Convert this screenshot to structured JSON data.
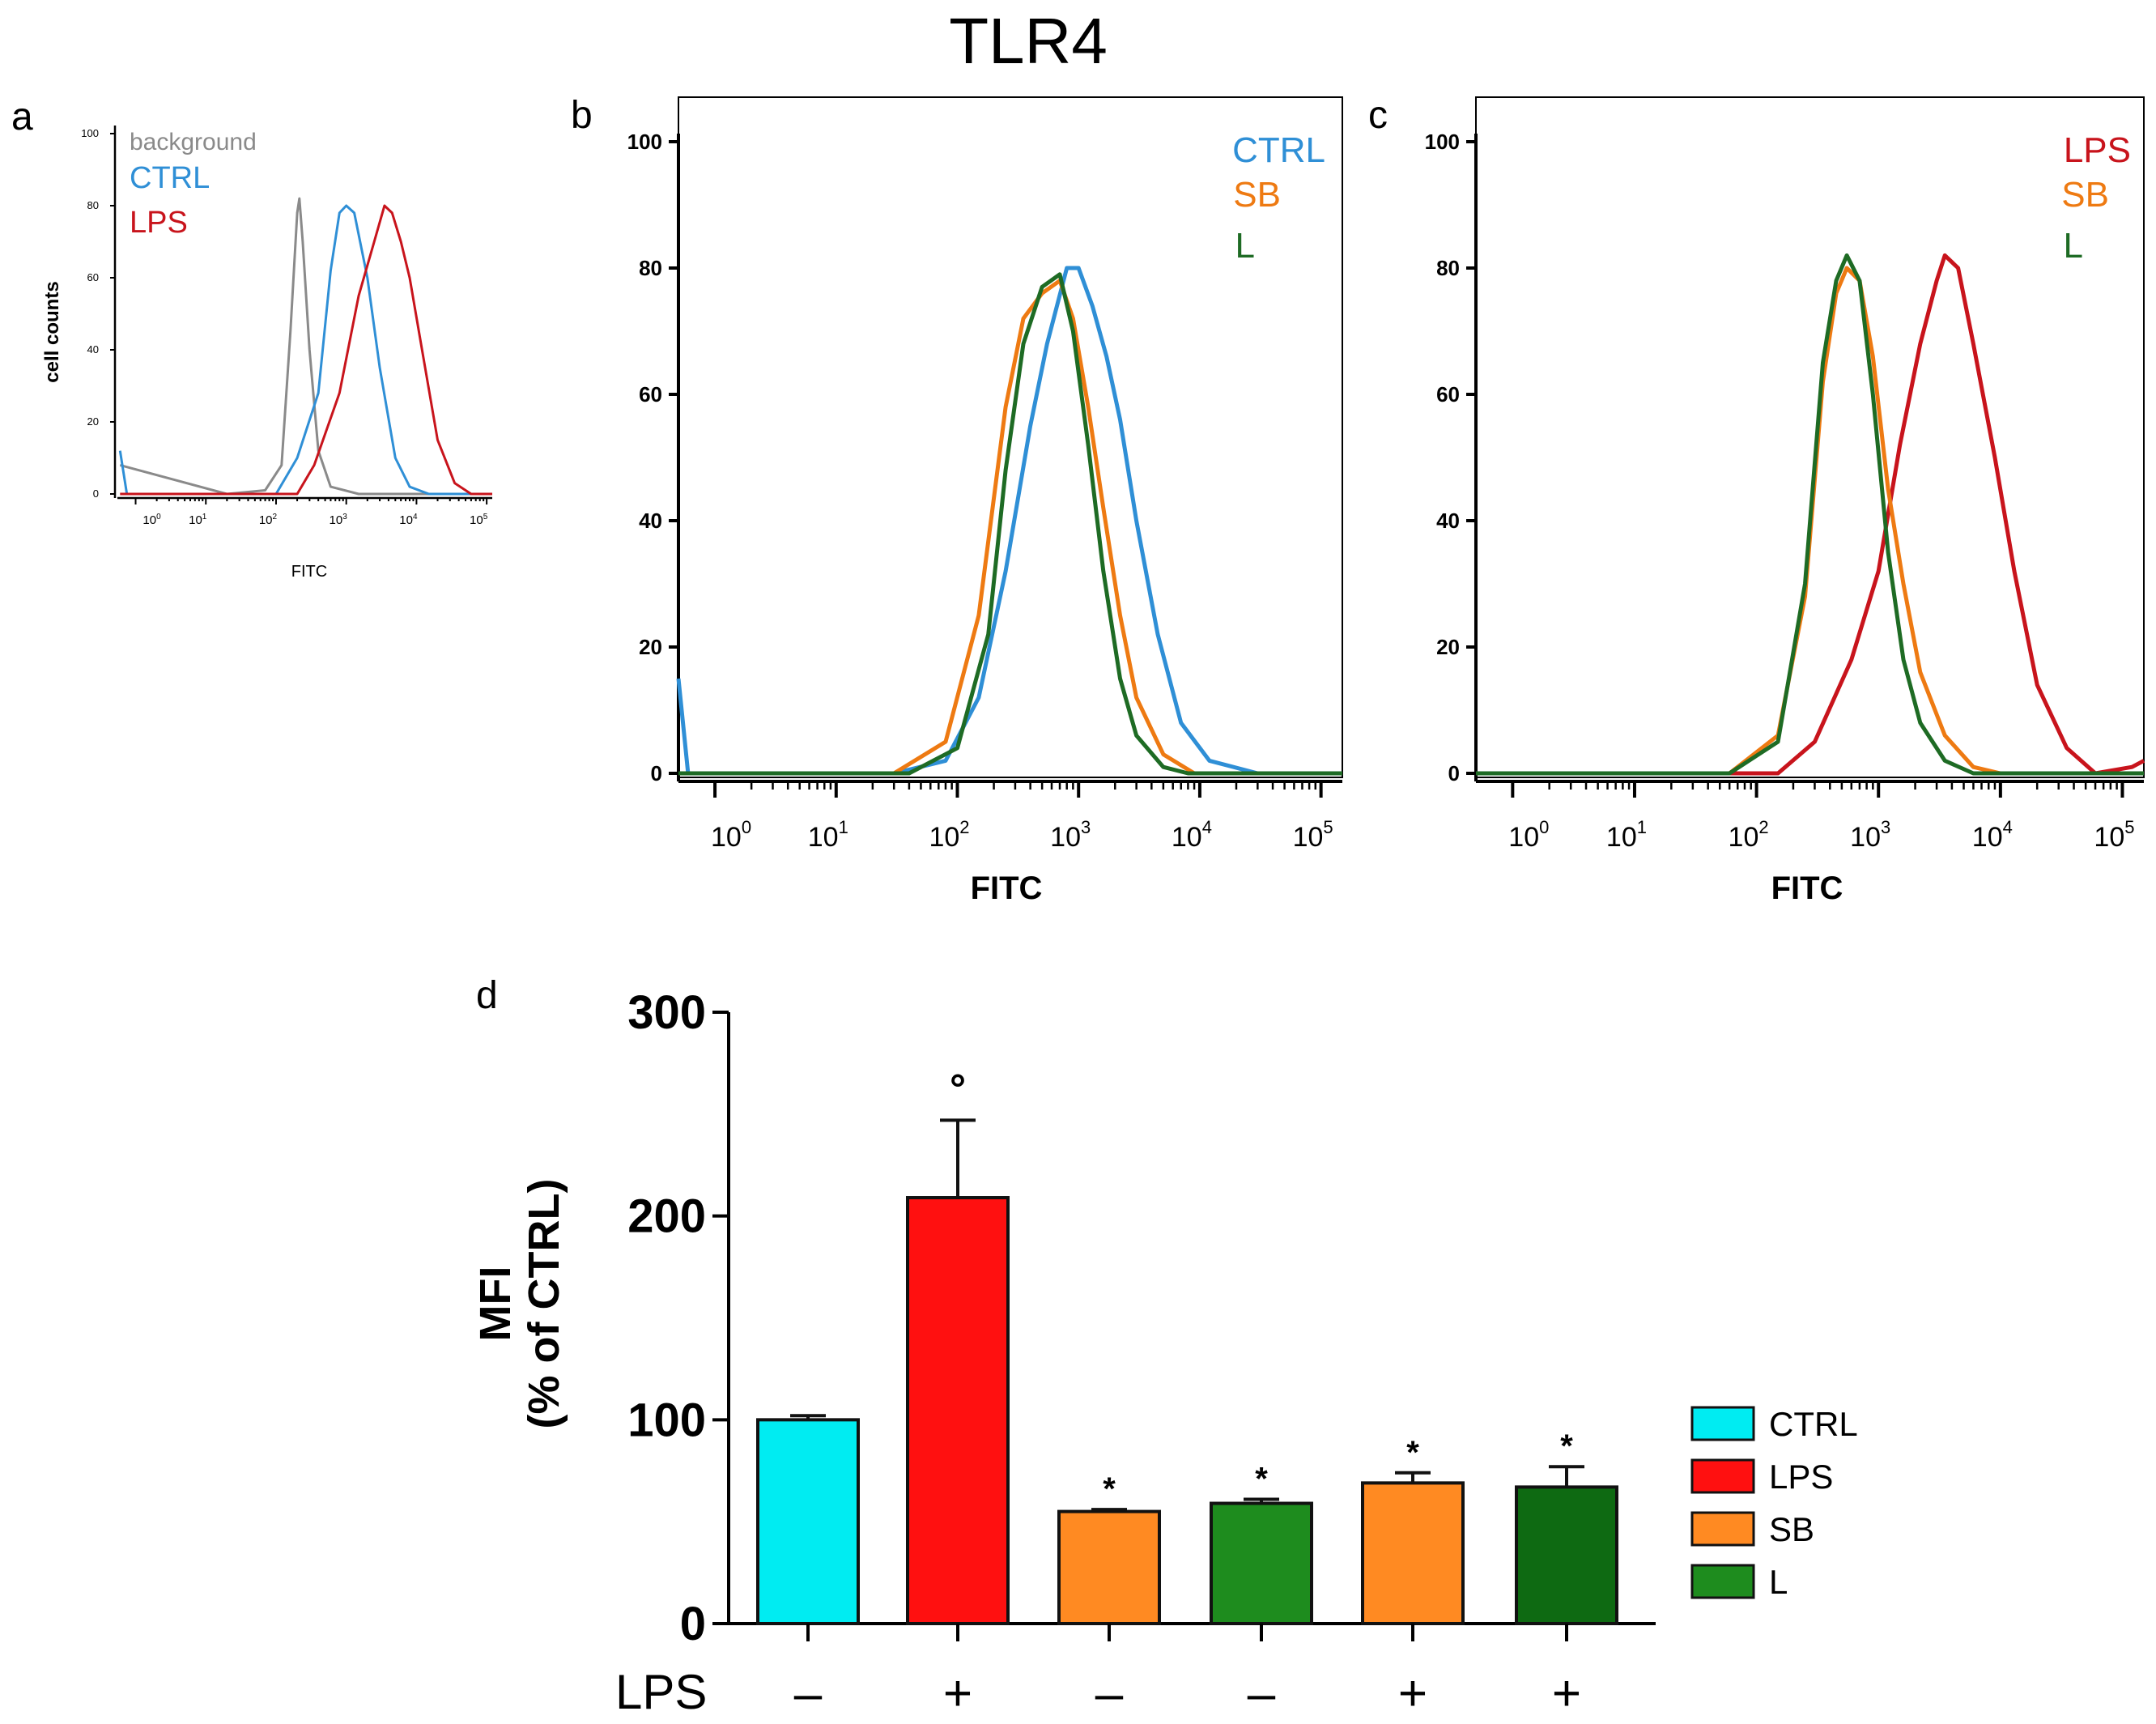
{
  "figure_title": "TLR4",
  "colors": {
    "background": "#8a8a8a",
    "ctrl_line": "#2f8fd6",
    "lps_line": "#c8141c",
    "sb_line": "#ee7a12",
    "l_line": "#1e6b24",
    "ctrl_bar": "#00ecf2",
    "lps_bar": "#ff1010",
    "sb_bar": "#ff8a22",
    "l_bar_a": "#1e8c1e",
    "l_bar_b": "#0e6a12"
  },
  "chart_data": [
    {
      "panel": "a",
      "type": "line",
      "ylabel": "cell counts",
      "xlabel": "FITC",
      "x_scale": "log",
      "xlim": [
        0.55,
        120000
      ],
      "ylim": [
        0,
        100
      ],
      "y_ticks": [
        "0",
        "20",
        "40",
        "60",
        "80",
        "100"
      ],
      "x_ticks": [
        {
          "base": "10",
          "exp": "0"
        },
        {
          "base": "10",
          "exp": "1"
        },
        {
          "base": "10",
          "exp": "2"
        },
        {
          "base": "10",
          "exp": "3"
        },
        {
          "base": "10",
          "exp": "4"
        },
        {
          "base": "10",
          "exp": "5"
        }
      ],
      "series": [
        {
          "name": "background",
          "color_key": "background",
          "points": [
            [
              0.6,
              8
            ],
            [
              20,
              0
            ],
            [
              70,
              1
            ],
            [
              120,
              8
            ],
            [
              160,
              45
            ],
            [
              200,
              78
            ],
            [
              215,
              82
            ],
            [
              240,
              70
            ],
            [
              300,
              40
            ],
            [
              400,
              12
            ],
            [
              600,
              2
            ],
            [
              1500,
              0
            ],
            [
              120000,
              0
            ]
          ]
        },
        {
          "name": "CTRL",
          "color_key": "ctrl_line",
          "points": [
            [
              0.6,
              12
            ],
            [
              0.75,
              0
            ],
            [
              100,
              0
            ],
            [
              200,
              10
            ],
            [
              400,
              28
            ],
            [
              600,
              62
            ],
            [
              800,
              78
            ],
            [
              1000,
              80
            ],
            [
              1300,
              78
            ],
            [
              2000,
              60
            ],
            [
              3000,
              35
            ],
            [
              5000,
              10
            ],
            [
              8000,
              2
            ],
            [
              15000,
              0
            ],
            [
              120000,
              0
            ]
          ]
        },
        {
          "name": "LPS",
          "color_key": "lps_line",
          "points": [
            [
              0.6,
              0
            ],
            [
              200,
              0
            ],
            [
              350,
              8
            ],
            [
              800,
              28
            ],
            [
              1500,
              55
            ],
            [
              2500,
              70
            ],
            [
              3500,
              80
            ],
            [
              4500,
              78
            ],
            [
              6000,
              70
            ],
            [
              8000,
              60
            ],
            [
              12000,
              40
            ],
            [
              20000,
              15
            ],
            [
              35000,
              3
            ],
            [
              60000,
              0
            ],
            [
              120000,
              0
            ]
          ]
        }
      ]
    },
    {
      "panel": "b",
      "type": "line",
      "xlabel": "FITC",
      "x_scale": "log",
      "xlim": [
        0.5,
        150000
      ],
      "ylim": [
        0,
        100
      ],
      "y_ticks": [
        "0",
        "20",
        "40",
        "60",
        "80",
        "100"
      ],
      "x_ticks": [
        {
          "base": "10",
          "exp": "0"
        },
        {
          "base": "10",
          "exp": "1"
        },
        {
          "base": "10",
          "exp": "2"
        },
        {
          "base": "10",
          "exp": "3"
        },
        {
          "base": "10",
          "exp": "4"
        },
        {
          "base": "10",
          "exp": "5"
        }
      ],
      "series": [
        {
          "name": "CTRL",
          "color_key": "ctrl_line",
          "points": [
            [
              0.5,
              15
            ],
            [
              0.6,
              0
            ],
            [
              30,
              0
            ],
            [
              80,
              2
            ],
            [
              150,
              12
            ],
            [
              250,
              32
            ],
            [
              400,
              55
            ],
            [
              550,
              68
            ],
            [
              800,
              80
            ],
            [
              1000,
              80
            ],
            [
              1300,
              74
            ],
            [
              1700,
              66
            ],
            [
              2200,
              56
            ],
            [
              3000,
              40
            ],
            [
              4500,
              22
            ],
            [
              7000,
              8
            ],
            [
              12000,
              2
            ],
            [
              30000,
              0
            ],
            [
              150000,
              0
            ]
          ]
        },
        {
          "name": "SB",
          "color_key": "sb_line",
          "points": [
            [
              0.5,
              0
            ],
            [
              30,
              0
            ],
            [
              80,
              5
            ],
            [
              150,
              25
            ],
            [
              250,
              58
            ],
            [
              350,
              72
            ],
            [
              500,
              76
            ],
            [
              700,
              78
            ],
            [
              900,
              72
            ],
            [
              1200,
              58
            ],
            [
              1600,
              42
            ],
            [
              2200,
              25
            ],
            [
              3000,
              12
            ],
            [
              5000,
              3
            ],
            [
              9000,
              0
            ],
            [
              150000,
              0
            ]
          ]
        },
        {
          "name": "L",
          "color_key": "l_line",
          "points": [
            [
              0.5,
              0
            ],
            [
              40,
              0
            ],
            [
              100,
              4
            ],
            [
              180,
              22
            ],
            [
              250,
              48
            ],
            [
              350,
              68
            ],
            [
              500,
              77
            ],
            [
              700,
              79
            ],
            [
              900,
              70
            ],
            [
              1200,
              52
            ],
            [
              1600,
              32
            ],
            [
              2200,
              15
            ],
            [
              3000,
              6
            ],
            [
              5000,
              1
            ],
            [
              8000,
              0
            ],
            [
              150000,
              0
            ]
          ]
        }
      ]
    },
    {
      "panel": "c",
      "type": "line",
      "xlabel": "FITC",
      "x_scale": "log",
      "xlim": [
        0.5,
        150000
      ],
      "ylim": [
        0,
        100
      ],
      "y_ticks": [
        "0",
        "20",
        "40",
        "60",
        "80",
        "100"
      ],
      "x_ticks": [
        {
          "base": "10",
          "exp": "0"
        },
        {
          "base": "10",
          "exp": "1"
        },
        {
          "base": "10",
          "exp": "2"
        },
        {
          "base": "10",
          "exp": "3"
        },
        {
          "base": "10",
          "exp": "4"
        },
        {
          "base": "10",
          "exp": "5"
        }
      ],
      "series": [
        {
          "name": "LPS",
          "color_key": "lps_line",
          "points": [
            [
              0.5,
              0
            ],
            [
              150,
              0
            ],
            [
              300,
              5
            ],
            [
              600,
              18
            ],
            [
              1000,
              32
            ],
            [
              1500,
              52
            ],
            [
              2200,
              68
            ],
            [
              3000,
              78
            ],
            [
              3500,
              82
            ],
            [
              4500,
              80
            ],
            [
              6000,
              68
            ],
            [
              9000,
              50
            ],
            [
              13000,
              32
            ],
            [
              20000,
              14
            ],
            [
              35000,
              4
            ],
            [
              60000,
              0
            ],
            [
              120000,
              1
            ],
            [
              150000,
              2
            ]
          ]
        },
        {
          "name": "SB",
          "color_key": "sb_line",
          "points": [
            [
              0.5,
              0
            ],
            [
              60,
              0
            ],
            [
              150,
              6
            ],
            [
              250,
              28
            ],
            [
              350,
              62
            ],
            [
              450,
              76
            ],
            [
              550,
              80
            ],
            [
              700,
              78
            ],
            [
              900,
              66
            ],
            [
              1200,
              45
            ],
            [
              1600,
              30
            ],
            [
              2200,
              16
            ],
            [
              3500,
              6
            ],
            [
              6000,
              1
            ],
            [
              10000,
              0
            ],
            [
              150000,
              0
            ]
          ]
        },
        {
          "name": "L",
          "color_key": "l_line",
          "points": [
            [
              0.5,
              0
            ],
            [
              60,
              0
            ],
            [
              150,
              5
            ],
            [
              250,
              30
            ],
            [
              350,
              65
            ],
            [
              450,
              78
            ],
            [
              550,
              82
            ],
            [
              700,
              78
            ],
            [
              900,
              60
            ],
            [
              1200,
              35
            ],
            [
              1600,
              18
            ],
            [
              2200,
              8
            ],
            [
              3500,
              2
            ],
            [
              6000,
              0
            ],
            [
              150000,
              0
            ]
          ]
        }
      ]
    },
    {
      "panel": "d",
      "type": "bar",
      "ylabel_line1": "MFI",
      "ylabel_line2": "(% of CTRL)",
      "ylim": [
        0,
        300
      ],
      "y_ticks": [
        "0",
        "100",
        "200",
        "300"
      ],
      "row_label": "LPS",
      "bars": [
        {
          "value": 100,
          "error": 2,
          "color_key": "ctrl_bar",
          "lps": "–",
          "mark": ""
        },
        {
          "value": 209,
          "error": 38,
          "color_key": "lps_bar",
          "lps": "+",
          "mark": "°"
        },
        {
          "value": 55,
          "error": 1,
          "color_key": "sb_bar",
          "lps": "–",
          "mark": "*"
        },
        {
          "value": 59,
          "error": 2,
          "color_key": "l_bar_a",
          "lps": "–",
          "mark": "*"
        },
        {
          "value": 69,
          "error": 5,
          "color_key": "sb_bar",
          "lps": "+",
          "mark": "*"
        },
        {
          "value": 67,
          "error": 10,
          "color_key": "l_bar_b",
          "lps": "+",
          "mark": "*"
        }
      ],
      "legend": [
        {
          "label": "CTRL",
          "color_key": "ctrl_bar"
        },
        {
          "label": "LPS",
          "color_key": "lps_bar"
        },
        {
          "label": "SB",
          "color_key": "sb_bar"
        },
        {
          "label": "L",
          "color_key": "l_bar_a"
        }
      ]
    }
  ],
  "panel_letters": {
    "a": "a",
    "b": "b",
    "c": "c",
    "d": "d"
  }
}
